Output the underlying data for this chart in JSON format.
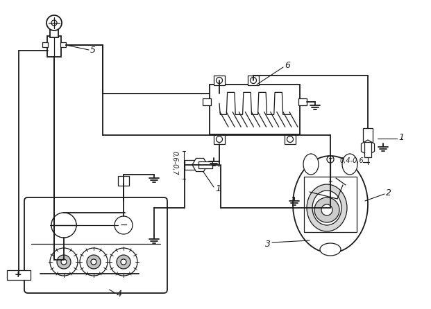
{
  "bg_color": "#ffffff",
  "line_color": "#1a1a1a",
  "lw": 1.3,
  "lw2": 0.9,
  "fig_width": 6.21,
  "fig_height": 4.46,
  "dpi": 100
}
